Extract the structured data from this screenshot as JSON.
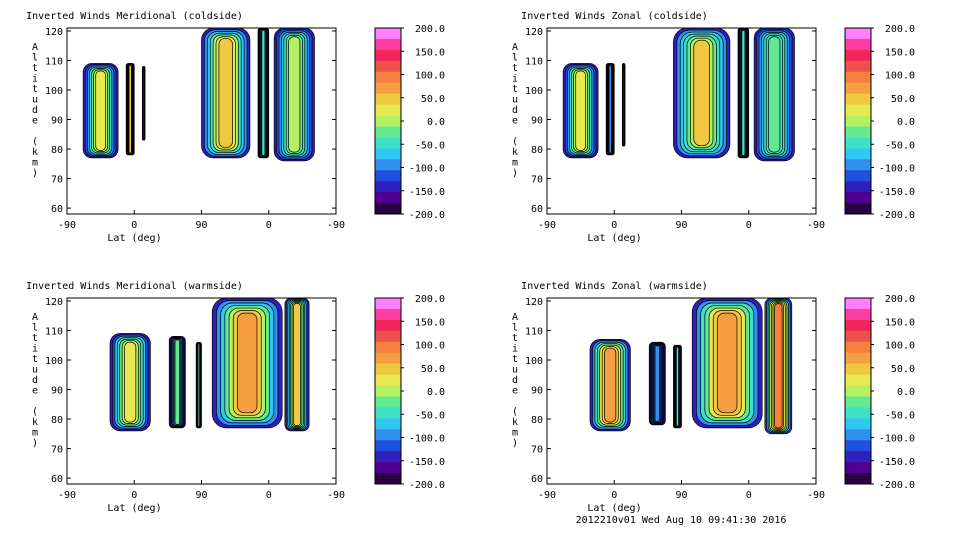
{
  "footer": "2012210v01 Wed Aug 10 09:41:30 2016",
  "colorbar": {
    "ticks": [
      "200.0",
      "150.0",
      "100.0",
      "50.0",
      "0.0",
      "-50.0",
      "-100.0",
      "-150.0",
      "-200.0"
    ],
    "colors": [
      "#ff80ff",
      "#ff3ca0",
      "#f0285a",
      "#f0504a",
      "#f58040",
      "#f5a040",
      "#f0c840",
      "#e8e850",
      "#b4f060",
      "#64e890",
      "#40e0c8",
      "#30c8f0",
      "#3090f0",
      "#2050e0",
      "#3020c0",
      "#500090",
      "#2a0040"
    ]
  },
  "chart_data": [
    {
      "type": "heatmap",
      "title": "Inverted Winds Meridional (coldside)",
      "xlabel": "Lat (deg)",
      "ylabel": "Altitude (km)",
      "x_ticks": [
        "-90",
        "0",
        "90",
        "0",
        "-90"
      ],
      "y_ticks": [
        "60",
        "70",
        "80",
        "90",
        "100",
        "110",
        "120"
      ],
      "ylim": [
        58,
        121
      ],
      "value_range": [
        -200,
        200
      ],
      "blobs": [
        {
          "x": [
            0.06,
            0.19
          ],
          "y": [
            77,
            109
          ],
          "core": 20
        },
        {
          "x": [
            0.22,
            0.25
          ],
          "y": [
            78,
            109
          ],
          "core": 60
        },
        {
          "x": [
            0.28,
            0.29
          ],
          "y": [
            83,
            108
          ],
          "core": -150
        },
        {
          "x": [
            0.5,
            0.68
          ],
          "y": [
            77,
            121
          ],
          "core": 50
        },
        {
          "x": [
            0.71,
            0.75
          ],
          "y": [
            77,
            121
          ],
          "core": -40
        },
        {
          "x": [
            0.77,
            0.92
          ],
          "y": [
            76,
            121
          ],
          "core": 10
        }
      ]
    },
    {
      "type": "heatmap",
      "title": "Inverted Winds Zonal (coldside)",
      "xlabel": "Lat (deg)",
      "ylabel": "Altitude (km)",
      "x_ticks": [
        "-90",
        "0",
        "90",
        "0",
        "-90"
      ],
      "y_ticks": [
        "60",
        "70",
        "80",
        "90",
        "100",
        "110",
        "120"
      ],
      "ylim": [
        58,
        121
      ],
      "value_range": [
        -200,
        200
      ],
      "blobs": [
        {
          "x": [
            0.06,
            0.19
          ],
          "y": [
            77,
            109
          ],
          "core": 20
        },
        {
          "x": [
            0.22,
            0.25
          ],
          "y": [
            78,
            109
          ],
          "core": -100
        },
        {
          "x": [
            0.28,
            0.29
          ],
          "y": [
            81,
            109
          ],
          "core": -150
        },
        {
          "x": [
            0.47,
            0.68
          ],
          "y": [
            77,
            121
          ],
          "core": 40
        },
        {
          "x": [
            0.71,
            0.75
          ],
          "y": [
            77,
            121
          ],
          "core": -60
        },
        {
          "x": [
            0.77,
            0.92
          ],
          "y": [
            76,
            121
          ],
          "core": -20
        }
      ]
    },
    {
      "type": "heatmap",
      "title": "Inverted Winds Meridional (warmside)",
      "xlabel": "Lat (deg)",
      "ylabel": "Altitude (km)",
      "x_ticks": [
        "-90",
        "0",
        "90",
        "0",
        "-90"
      ],
      "y_ticks": [
        "60",
        "70",
        "80",
        "90",
        "100",
        "110",
        "120"
      ],
      "ylim": [
        58,
        121
      ],
      "value_range": [
        -200,
        200
      ],
      "blobs": [
        {
          "x": [
            0.16,
            0.31
          ],
          "y": [
            76,
            109
          ],
          "core": 30
        },
        {
          "x": [
            0.38,
            0.44
          ],
          "y": [
            77,
            108
          ],
          "core": -30
        },
        {
          "x": [
            0.48,
            0.5
          ],
          "y": [
            77,
            106
          ],
          "core": -30
        },
        {
          "x": [
            0.54,
            0.8
          ],
          "y": [
            77,
            121
          ],
          "core": 70
        },
        {
          "x": [
            0.81,
            0.9
          ],
          "y": [
            76,
            121
          ],
          "core": 40
        }
      ]
    },
    {
      "type": "heatmap",
      "title": "Inverted Winds Zonal (warmside)",
      "xlabel": "Lat (deg)",
      "ylabel": "Altitude (km)",
      "x_ticks": [
        "-90",
        "0",
        "90",
        "0",
        "-90"
      ],
      "y_ticks": [
        "60",
        "70",
        "80",
        "90",
        "100",
        "110",
        "120"
      ],
      "ylim": [
        58,
        121
      ],
      "value_range": [
        -200,
        200
      ],
      "blobs": [
        {
          "x": [
            0.16,
            0.31
          ],
          "y": [
            76,
            107
          ],
          "core": 80
        },
        {
          "x": [
            0.38,
            0.44
          ],
          "y": [
            78,
            106
          ],
          "core": -90
        },
        {
          "x": [
            0.47,
            0.5
          ],
          "y": [
            77,
            105
          ],
          "core": -60
        },
        {
          "x": [
            0.54,
            0.8
          ],
          "y": [
            77,
            121
          ],
          "core": 80
        },
        {
          "x": [
            0.81,
            0.91
          ],
          "y": [
            75,
            121
          ],
          "core": 100
        }
      ]
    }
  ]
}
